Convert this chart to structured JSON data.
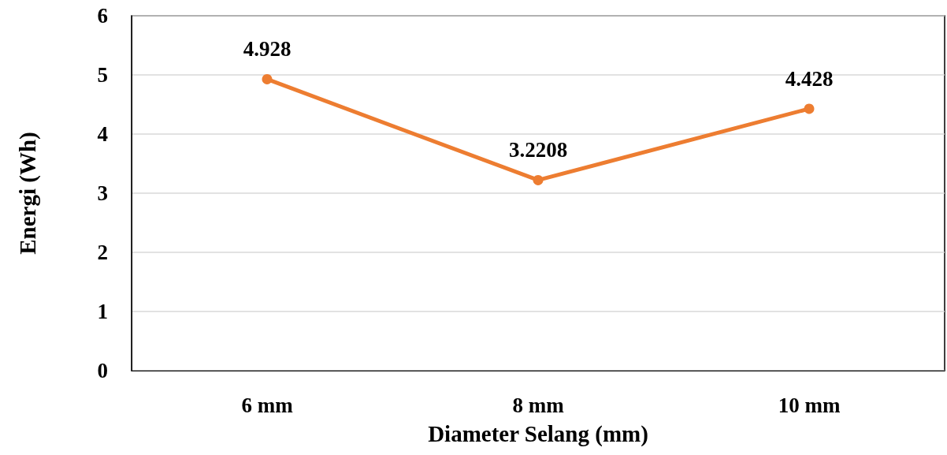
{
  "chart_data": {
    "type": "line",
    "xlabel": "Diameter Selang (mm)",
    "ylabel": "Energi (Wh)",
    "categories": [
      "6 mm",
      "8 mm",
      "10 mm"
    ],
    "series": [
      {
        "color": "#ed7d31",
        "values": [
          4.928,
          3.2208,
          4.428
        ]
      }
    ],
    "ylim": [
      0,
      6
    ],
    "yticks": [
      0,
      1,
      2,
      3,
      4,
      5,
      6
    ],
    "grid": "y",
    "marker": "circle",
    "line_style": "solid",
    "data_labels": true
  }
}
